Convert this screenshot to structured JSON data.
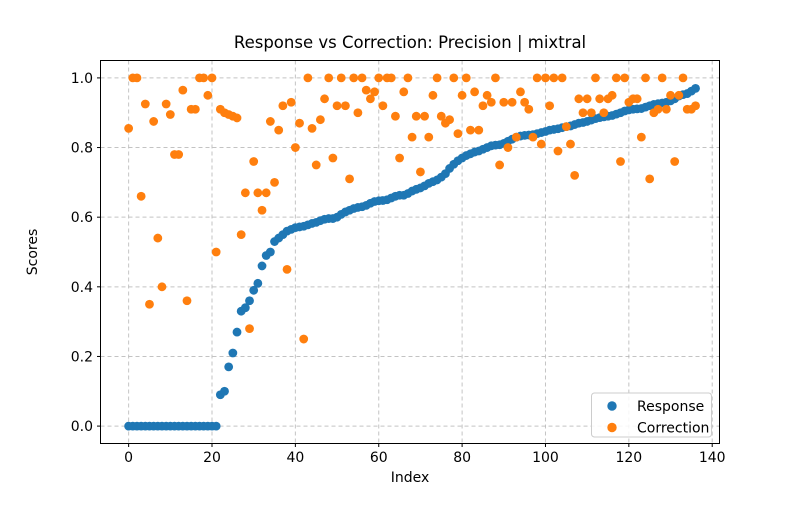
{
  "window": {
    "title": "Response vs Correction: Precision | mixtral"
  },
  "chart_data": {
    "type": "scatter",
    "title": "Response vs Correction: Precision | mixtral",
    "xlabel": "Index",
    "ylabel": "Scores",
    "xlim": [
      -6.75,
      141.75
    ],
    "ylim": [
      -0.05,
      1.05
    ],
    "xticks": [
      0,
      20,
      40,
      60,
      80,
      100,
      120,
      140
    ],
    "yticks": [
      0.0,
      0.2,
      0.4,
      0.6,
      0.8,
      1.0
    ],
    "grid": "dashed-both-axes",
    "legend_position": "lower right",
    "x_rule": "x value equals point index 0..136 for both series",
    "series": [
      {
        "name": "Response",
        "color": "#1f77b4",
        "y": [
          0,
          0,
          0,
          0,
          0,
          0,
          0,
          0,
          0,
          0,
          0,
          0,
          0,
          0,
          0,
          0,
          0,
          0,
          0,
          0,
          0,
          0,
          0.09,
          0.1,
          0.17,
          0.21,
          0.27,
          0.33,
          0.34,
          0.36,
          0.39,
          0.41,
          0.46,
          0.49,
          0.5,
          0.53,
          0.54,
          0.55,
          0.56,
          0.565,
          0.57,
          0.572,
          0.574,
          0.578,
          0.582,
          0.585,
          0.59,
          0.594,
          0.596,
          0.596,
          0.6,
          0.608,
          0.615,
          0.62,
          0.625,
          0.628,
          0.63,
          0.634,
          0.64,
          0.645,
          0.647,
          0.648,
          0.65,
          0.655,
          0.66,
          0.663,
          0.663,
          0.668,
          0.675,
          0.68,
          0.684,
          0.69,
          0.697,
          0.702,
          0.707,
          0.715,
          0.725,
          0.74,
          0.752,
          0.762,
          0.77,
          0.777,
          0.782,
          0.787,
          0.79,
          0.795,
          0.8,
          0.805,
          0.807,
          0.808,
          0.812,
          0.818,
          0.824,
          0.83,
          0.833,
          0.835,
          0.836,
          0.837,
          0.84,
          0.843,
          0.846,
          0.85,
          0.852,
          0.854,
          0.857,
          0.86,
          0.862,
          0.866,
          0.87,
          0.872,
          0.875,
          0.879,
          0.883,
          0.886,
          0.888,
          0.89,
          0.892,
          0.896,
          0.9,
          0.905,
          0.908,
          0.91,
          0.911,
          0.912,
          0.916,
          0.92,
          0.924,
          0.926,
          0.928,
          0.93,
          0.934,
          0.94,
          0.948,
          0.952,
          0.955,
          0.962,
          0.97
        ]
      },
      {
        "name": "Correction",
        "color": "#ff7f0e",
        "y": [
          0.855,
          1,
          1,
          0.66,
          0.925,
          0.35,
          0.875,
          0.54,
          0.4,
          0.925,
          0.895,
          0.78,
          0.78,
          0.965,
          0.36,
          0.91,
          0.91,
          1,
          1,
          0.95,
          1,
          0.5,
          0.91,
          0.9,
          0.895,
          0.89,
          0.885,
          0.55,
          0.67,
          0.28,
          0.76,
          0.67,
          0.62,
          0.67,
          0.875,
          0.7,
          0.85,
          0.92,
          0.45,
          0.93,
          0.8,
          0.87,
          0.25,
          1,
          0.855,
          0.75,
          0.88,
          0.94,
          1,
          0.77,
          0.92,
          1,
          0.92,
          0.71,
          1,
          0.9,
          1,
          0.965,
          0.94,
          0.96,
          1,
          0.92,
          1,
          1,
          0.89,
          0.77,
          0.96,
          1,
          0.83,
          0.89,
          0.73,
          0.89,
          0.83,
          0.95,
          1,
          0.89,
          0.87,
          0.88,
          1,
          0.84,
          0.95,
          1,
          0.85,
          0.96,
          0.85,
          0.92,
          0.95,
          0.93,
          1,
          0.75,
          0.93,
          0.8,
          0.93,
          0.83,
          0.96,
          0.93,
          0.91,
          0.83,
          1,
          0.81,
          1,
          0.92,
          1,
          0.79,
          1,
          0.86,
          0.81,
          0.72,
          0.94,
          0.9,
          0.94,
          0.9,
          1,
          0.94,
          0.9,
          0.94,
          0.95,
          1,
          0.76,
          1,
          0.93,
          0.94,
          0.94,
          0.83,
          1,
          0.71,
          0.9,
          0.91,
          1,
          0.91,
          0.95,
          0.76,
          0.95,
          1,
          0.91,
          0.91,
          0.92
        ]
      }
    ]
  }
}
